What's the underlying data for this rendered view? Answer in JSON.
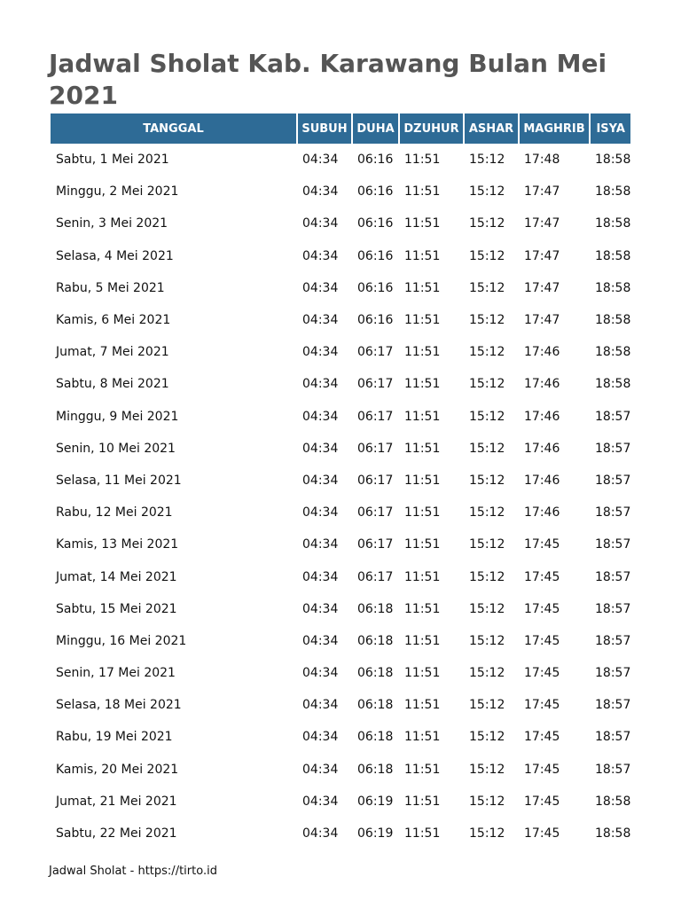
{
  "title": "Jadwal Sholat Kab. Karawang Bulan Mei 2021",
  "columns": [
    "TANGGAL",
    "SUBUH",
    "DUHA",
    "DZUHUR",
    "ASHAR",
    "MAGHRIB",
    "ISYA"
  ],
  "rows": [
    [
      "Sabtu, 1 Mei 2021",
      "04:34",
      "06:16",
      "11:51",
      "15:12",
      "17:48",
      "18:58"
    ],
    [
      "Minggu, 2 Mei 2021",
      "04:34",
      "06:16",
      "11:51",
      "15:12",
      "17:47",
      "18:58"
    ],
    [
      "Senin, 3 Mei 2021",
      "04:34",
      "06:16",
      "11:51",
      "15:12",
      "17:47",
      "18:58"
    ],
    [
      "Selasa, 4 Mei 2021",
      "04:34",
      "06:16",
      "11:51",
      "15:12",
      "17:47",
      "18:58"
    ],
    [
      "Rabu, 5 Mei 2021",
      "04:34",
      "06:16",
      "11:51",
      "15:12",
      "17:47",
      "18:58"
    ],
    [
      "Kamis, 6 Mei 2021",
      "04:34",
      "06:16",
      "11:51",
      "15:12",
      "17:47",
      "18:58"
    ],
    [
      "Jumat, 7 Mei 2021",
      "04:34",
      "06:17",
      "11:51",
      "15:12",
      "17:46",
      "18:58"
    ],
    [
      "Sabtu, 8 Mei 2021",
      "04:34",
      "06:17",
      "11:51",
      "15:12",
      "17:46",
      "18:58"
    ],
    [
      "Minggu, 9 Mei 2021",
      "04:34",
      "06:17",
      "11:51",
      "15:12",
      "17:46",
      "18:57"
    ],
    [
      "Senin, 10 Mei 2021",
      "04:34",
      "06:17",
      "11:51",
      "15:12",
      "17:46",
      "18:57"
    ],
    [
      "Selasa, 11 Mei 2021",
      "04:34",
      "06:17",
      "11:51",
      "15:12",
      "17:46",
      "18:57"
    ],
    [
      "Rabu, 12 Mei 2021",
      "04:34",
      "06:17",
      "11:51",
      "15:12",
      "17:46",
      "18:57"
    ],
    [
      "Kamis, 13 Mei 2021",
      "04:34",
      "06:17",
      "11:51",
      "15:12",
      "17:45",
      "18:57"
    ],
    [
      "Jumat, 14 Mei 2021",
      "04:34",
      "06:17",
      "11:51",
      "15:12",
      "17:45",
      "18:57"
    ],
    [
      "Sabtu, 15 Mei 2021",
      "04:34",
      "06:18",
      "11:51",
      "15:12",
      "17:45",
      "18:57"
    ],
    [
      "Minggu, 16 Mei 2021",
      "04:34",
      "06:18",
      "11:51",
      "15:12",
      "17:45",
      "18:57"
    ],
    [
      "Senin, 17 Mei 2021",
      "04:34",
      "06:18",
      "11:51",
      "15:12",
      "17:45",
      "18:57"
    ],
    [
      "Selasa, 18 Mei 2021",
      "04:34",
      "06:18",
      "11:51",
      "15:12",
      "17:45",
      "18:57"
    ],
    [
      "Rabu, 19 Mei 2021",
      "04:34",
      "06:18",
      "11:51",
      "15:12",
      "17:45",
      "18:57"
    ],
    [
      "Kamis, 20 Mei 2021",
      "04:34",
      "06:18",
      "11:51",
      "15:12",
      "17:45",
      "18:57"
    ],
    [
      "Jumat, 21 Mei 2021",
      "04:34",
      "06:19",
      "11:51",
      "15:12",
      "17:45",
      "18:58"
    ],
    [
      "Sabtu, 22 Mei 2021",
      "04:34",
      "06:19",
      "11:51",
      "15:12",
      "17:45",
      "18:58"
    ]
  ],
  "footer": "Jadwal Sholat - https://tirto.id",
  "colors": {
    "header_bg": "#2e6b96",
    "header_text": "#ffffff",
    "title": "#555555"
  }
}
